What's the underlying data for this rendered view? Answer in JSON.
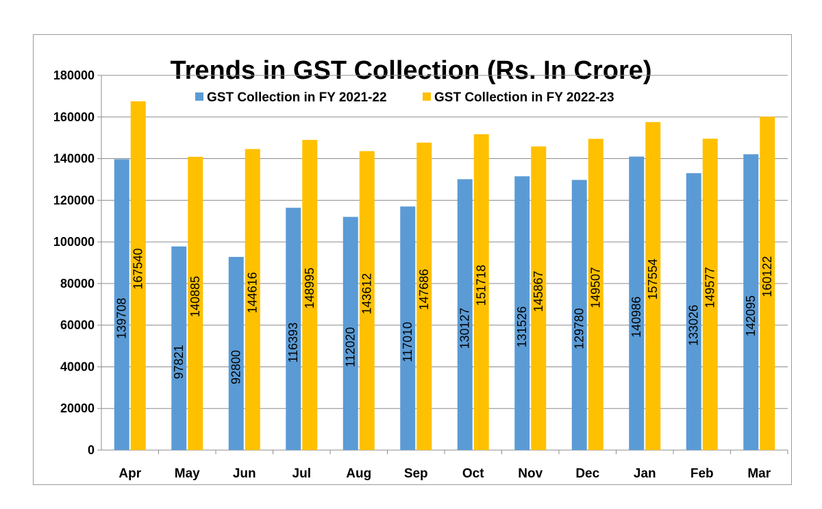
{
  "chart_data": {
    "type": "bar",
    "title": "Trends in GST Collection (Rs. In Crore)",
    "xlabel": "",
    "ylabel": "",
    "ylim": [
      0,
      180000
    ],
    "yticks": [
      0,
      20000,
      40000,
      60000,
      80000,
      100000,
      120000,
      140000,
      160000,
      180000
    ],
    "grid": true,
    "legend_position": "top-center",
    "categories": [
      "Apr",
      "May",
      "Jun",
      "Jul",
      "Aug",
      "Sep",
      "Oct",
      "Nov",
      "Dec",
      "Jan",
      "Feb",
      "Mar"
    ],
    "series": [
      {
        "name": "GST Collection in FY 2021-22",
        "color": "#5b9bd5",
        "values": [
          139708,
          97821,
          92800,
          116393,
          112020,
          117010,
          130127,
          131526,
          129780,
          140986,
          133026,
          142095
        ]
      },
      {
        "name": "GST Collection in FY 2022-23",
        "color": "#ffc000",
        "values": [
          167540,
          140885,
          144616,
          148995,
          143612,
          147686,
          151718,
          145867,
          149507,
          157554,
          149577,
          160122
        ]
      }
    ]
  }
}
